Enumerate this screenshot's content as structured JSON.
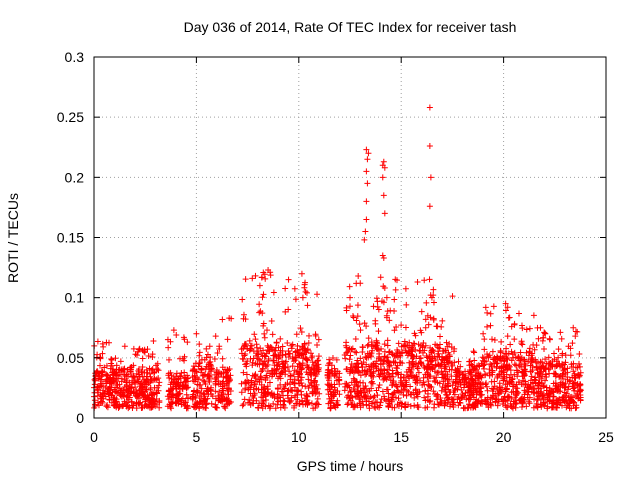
{
  "chart_data": {
    "type": "scatter",
    "title": "Day 036 of 2014, Rate Of TEC Index for receiver tash",
    "xlabel": "GPS time / hours",
    "ylabel": "ROTI / TECUs",
    "xlim": [
      0,
      25
    ],
    "ylim": [
      0,
      0.3
    ],
    "x_ticks": [
      0,
      5,
      10,
      15,
      20,
      25
    ],
    "x_tick_labels": [
      "0",
      "5",
      "10",
      "15",
      "20",
      "25"
    ],
    "y_ticks": [
      0,
      0.05,
      0.1,
      0.15,
      0.2,
      0.25,
      0.3
    ],
    "y_tick_labels": [
      "0",
      "0.05",
      "0.1",
      "0.15",
      "0.2",
      "0.25",
      "0.3"
    ],
    "grid": true,
    "legend": "none",
    "marker": "plus",
    "color": "#ff0000",
    "clusters": [
      {
        "x_range": [
          0.0,
          3.2
        ],
        "y_range": [
          0.008,
          0.04
        ],
        "peak": 0.064
      },
      {
        "x_range": [
          3.6,
          4.6
        ],
        "y_range": [
          0.008,
          0.035
        ],
        "peak": 0.073
      },
      {
        "x_range": [
          4.8,
          5.8
        ],
        "y_range": [
          0.008,
          0.045
        ],
        "peak": 0.07
      },
      {
        "x_range": [
          5.9,
          6.7
        ],
        "y_range": [
          0.008,
          0.04
        ],
        "peak": 0.083
      },
      {
        "x_range": [
          7.2,
          10.5
        ],
        "y_range": [
          0.008,
          0.06
        ],
        "peak": 0.123
      },
      {
        "x_range": [
          10.5,
          11.0
        ],
        "y_range": [
          0.008,
          0.05
        ],
        "peak": 0.104
      },
      {
        "x_range": [
          11.4,
          12.0
        ],
        "y_range": [
          0.008,
          0.04
        ],
        "peak": 0.056
      },
      {
        "x_range": [
          12.2,
          17.6
        ],
        "y_range": [
          0.008,
          0.06
        ],
        "peak": 0.118
      },
      {
        "x_range": [
          17.6,
          19.0
        ],
        "y_range": [
          0.008,
          0.04
        ],
        "peak": 0.056
      },
      {
        "x_range": [
          19.0,
          21.6
        ],
        "y_range": [
          0.008,
          0.05
        ],
        "peak": 0.095
      },
      {
        "x_range": [
          21.6,
          23.8
        ],
        "y_range": [
          0.008,
          0.045
        ],
        "peak": 0.075
      }
    ],
    "outliers": [
      {
        "x": 8.2,
        "y": 0.117
      },
      {
        "x": 8.5,
        "y": 0.123
      },
      {
        "x": 8.1,
        "y": 0.11
      },
      {
        "x": 9.5,
        "y": 0.115
      },
      {
        "x": 10.2,
        "y": 0.1
      },
      {
        "x": 10.4,
        "y": 0.104
      },
      {
        "x": 12.5,
        "y": 0.1
      },
      {
        "x": 12.9,
        "y": 0.118
      },
      {
        "x": 13.0,
        "y": 0.112
      },
      {
        "x": 13.2,
        "y": 0.148
      },
      {
        "x": 13.25,
        "y": 0.155
      },
      {
        "x": 13.3,
        "y": 0.165
      },
      {
        "x": 13.3,
        "y": 0.18
      },
      {
        "x": 13.35,
        "y": 0.195
      },
      {
        "x": 13.3,
        "y": 0.205
      },
      {
        "x": 13.35,
        "y": 0.215
      },
      {
        "x": 13.4,
        "y": 0.22
      },
      {
        "x": 13.3,
        "y": 0.223
      },
      {
        "x": 14.1,
        "y": 0.21
      },
      {
        "x": 14.15,
        "y": 0.213
      },
      {
        "x": 14.2,
        "y": 0.208
      },
      {
        "x": 14.1,
        "y": 0.2
      },
      {
        "x": 14.15,
        "y": 0.185
      },
      {
        "x": 14.2,
        "y": 0.17
      },
      {
        "x": 14.1,
        "y": 0.135
      },
      {
        "x": 14.15,
        "y": 0.133
      },
      {
        "x": 14.0,
        "y": 0.117
      },
      {
        "x": 14.2,
        "y": 0.108
      },
      {
        "x": 14.3,
        "y": 0.1
      },
      {
        "x": 16.4,
        "y": 0.258
      },
      {
        "x": 16.4,
        "y": 0.226
      },
      {
        "x": 16.45,
        "y": 0.2
      },
      {
        "x": 16.4,
        "y": 0.176
      },
      {
        "x": 16.5,
        "y": 0.1
      },
      {
        "x": 16.6,
        "y": 0.096
      },
      {
        "x": 16.3,
        "y": 0.085
      },
      {
        "x": 16.2,
        "y": 0.082
      },
      {
        "x": 20.1,
        "y": 0.095
      },
      {
        "x": 20.2,
        "y": 0.092
      },
      {
        "x": 20.2,
        "y": 0.068
      },
      {
        "x": 23.4,
        "y": 0.075
      },
      {
        "x": 23.5,
        "y": 0.068
      },
      {
        "x": 6.6,
        "y": 0.083
      },
      {
        "x": 3.9,
        "y": 0.073
      },
      {
        "x": 5.0,
        "y": 0.07
      },
      {
        "x": 19.0,
        "y": 0.07
      },
      {
        "x": 21.8,
        "y": 0.075
      }
    ]
  }
}
